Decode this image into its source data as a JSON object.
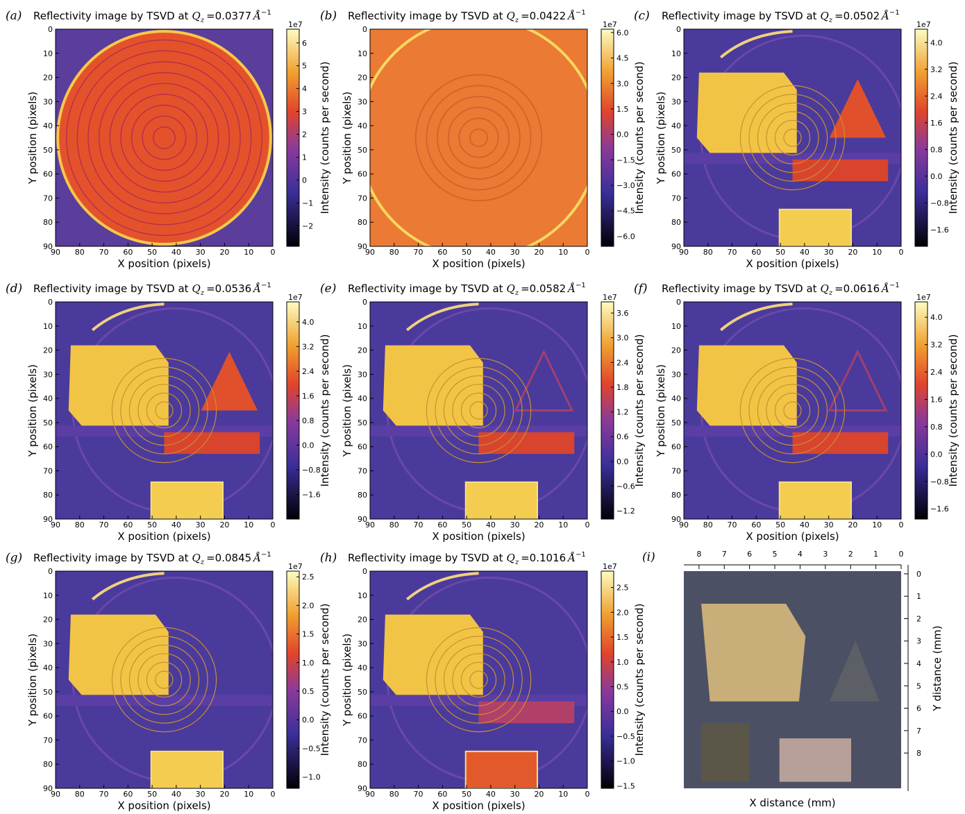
{
  "panels": [
    {
      "label": "(a)",
      "title": "Reflectivity image by TSVD at",
      "qz": "=0.0377",
      "cbar_lim": [
        -2.9,
        6.6
      ],
      "cbar_ticks": [
        {
          "value": -2,
          "label": "−2"
        },
        {
          "value": -1,
          "label": "−1"
        },
        0,
        1,
        2,
        3,
        4,
        5,
        6
      ]
    },
    {
      "label": "(b)",
      "title": "Reflectivity image by TSVD at",
      "qz": "=0.0422",
      "cbar_lim": [
        -6.6,
        6.2
      ],
      "cbar_ticks": [
        {
          "value": -6,
          "label": "−6.0"
        },
        {
          "value": -4.5,
          "label": "−4.5"
        },
        {
          "value": -3,
          "label": "−3.0"
        },
        {
          "value": -1.5,
          "label": "−1.5"
        },
        {
          "value": 0,
          "label": "0.0"
        },
        1.5,
        {
          "value": 3,
          "label": "3.0"
        },
        4.5,
        {
          "value": 6,
          "label": "6.0"
        }
      ]
    },
    {
      "label": "(c)",
      "title": "Reflectivity image by TSVD at",
      "qz": "=0.0502",
      "cbar_lim": [
        -2.1,
        4.4
      ],
      "cbar_ticks": [
        {
          "value": -1.6,
          "label": "−1.6"
        },
        {
          "value": -0.8,
          "label": "−0.8"
        },
        {
          "value": 0,
          "label": "0.0"
        },
        0.8,
        1.6,
        2.4,
        3.2,
        {
          "value": 4,
          "label": "4.0"
        }
      ]
    },
    {
      "label": "(d)",
      "title": "Reflectivity image by TSVD at",
      "qz": "=0.0536",
      "cbar_lim": [
        -2.4,
        4.65
      ],
      "cbar_ticks": [
        {
          "value": -1.6,
          "label": "−1.6"
        },
        {
          "value": -0.8,
          "label": "−0.8"
        },
        {
          "value": 0,
          "label": "0.0"
        },
        0.8,
        1.6,
        2.4,
        3.2,
        {
          "value": 4,
          "label": "4.0"
        }
      ]
    },
    {
      "label": "(e)",
      "title": "Reflectivity image by TSVD at",
      "qz": "=0.0582",
      "cbar_lim": [
        -1.4,
        3.87
      ],
      "cbar_ticks": [
        {
          "value": -1.2,
          "label": "−1.2"
        },
        {
          "value": -0.6,
          "label": "−0.6"
        },
        {
          "value": 0,
          "label": "0.0"
        },
        0.6,
        1.2,
        1.8,
        2.4,
        {
          "value": 3,
          "label": "3.0"
        },
        3.6
      ]
    },
    {
      "label": "(f)",
      "title": "Reflectivity image by TSVD at",
      "qz": "=0.0616",
      "cbar_lim": [
        -1.9,
        4.45
      ],
      "cbar_ticks": [
        {
          "value": -1.6,
          "label": "−1.6"
        },
        {
          "value": -0.8,
          "label": "−0.8"
        },
        {
          "value": 0,
          "label": "0.0"
        },
        0.8,
        1.6,
        2.4,
        3.2,
        {
          "value": 4,
          "label": "4.0"
        }
      ]
    },
    {
      "label": "(g)",
      "title": "Reflectivity image by TSVD at",
      "qz": "=0.0845",
      "cbar_lim": [
        -1.2,
        2.6
      ],
      "cbar_ticks": [
        {
          "value": -1,
          "label": "−1.0"
        },
        {
          "value": -0.5,
          "label": "−0.5"
        },
        {
          "value": 0,
          "label": "0.0"
        },
        0.5,
        {
          "value": 1,
          "label": "1.0"
        },
        1.5,
        {
          "value": 2,
          "label": "2.0"
        },
        2.5
      ]
    },
    {
      "label": "(h)",
      "title": "Reflectivity image by TSVD at",
      "qz": "=0.1016",
      "cbar_lim": [
        -1.55,
        2.83
      ],
      "cbar_ticks": [
        {
          "value": -1.5,
          "label": "−1.5"
        },
        {
          "value": -1,
          "label": "−1.0"
        },
        {
          "value": -0.5,
          "label": "−0.5"
        },
        {
          "value": 0,
          "label": "0.0"
        },
        0.5,
        {
          "value": 1,
          "label": "1.0"
        },
        1.5,
        {
          "value": 2,
          "label": "2.0"
        },
        2.5
      ]
    }
  ],
  "common": {
    "q": "Q",
    "z": "z",
    "unit": "Å",
    "exp": "−1",
    "scale": "1e7",
    "xlabel": "X position (pixels)",
    "ylabel": "Y position (pixels)",
    "cbar_label": "Intensity (counts per second)",
    "xlim": [
      90,
      0
    ],
    "ylim": [
      0,
      90
    ],
    "xticks": [
      90,
      80,
      70,
      60,
      50,
      40,
      30,
      20,
      10,
      0
    ],
    "yticks": [
      0,
      10,
      20,
      30,
      40,
      50,
      60,
      70,
      80,
      90
    ]
  },
  "photo": {
    "label": "(i)",
    "xlabel": "X distance (mm)",
    "ylabel": "Y distance (mm)",
    "xlim": [
      8.6,
      0
    ],
    "ylim": [
      -0.4,
      9.7
    ],
    "xticks": [
      8,
      7,
      6,
      5,
      4,
      3,
      2,
      1,
      0
    ],
    "yticks": [
      0,
      1,
      2,
      3,
      4,
      5,
      6,
      7,
      8
    ]
  }
}
